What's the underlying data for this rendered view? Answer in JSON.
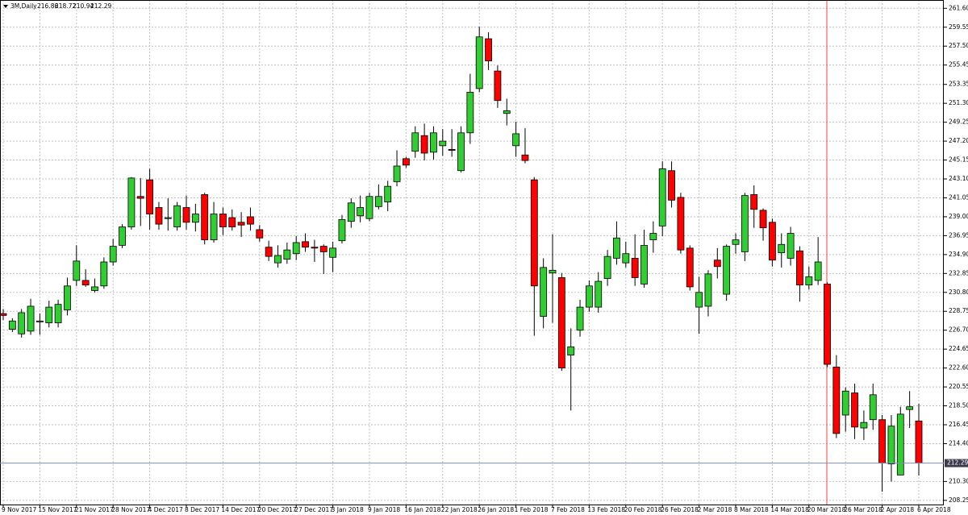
{
  "chart_data": {
    "type": "candlestick",
    "title": "3M,Daily",
    "categories": [
      "9 Nov 2017",
      null,
      null,
      null,
      "15 Nov 2017",
      null,
      null,
      null,
      "21 Nov 2017",
      null,
      null,
      null,
      "28 Nov 2017",
      null,
      null,
      null,
      "4 Dec 2017",
      null,
      null,
      null,
      "8 Dec 2017",
      null,
      null,
      null,
      "14 Dec 2017",
      null,
      null,
      null,
      "20 Dec 2017",
      null,
      null,
      null,
      "27 Dec 2017",
      null,
      null,
      null,
      "3 Jan 2018",
      null,
      null,
      null,
      "9 Jan 2018",
      null,
      null,
      null,
      "16 Jan 2018",
      null,
      null,
      null,
      "22 Jan 2018",
      null,
      null,
      null,
      "26 Jan 2018",
      null,
      null,
      null,
      "1 Feb 2018",
      null,
      null,
      null,
      "7 Feb 2018",
      null,
      null,
      null,
      "13 Feb 2018",
      null,
      null,
      null,
      "20 Feb 2018",
      null,
      null,
      null,
      "26 Feb 2018",
      null,
      null,
      null,
      "2 Mar 2018",
      null,
      null,
      null,
      "8 Mar 2018",
      null,
      null,
      null,
      "14 Mar 2018",
      null,
      null,
      null,
      "20 Mar 2018",
      null,
      null,
      null,
      "26 Mar 2018",
      null,
      null,
      null,
      "2 Apr 2018",
      null,
      null,
      null,
      "6 Apr 2018"
    ],
    "open": [
      228.5,
      226.8,
      226.3,
      226.6,
      227.6,
      227.5,
      227.5,
      228.9,
      232.1,
      232.1,
      231.0,
      231.5,
      234.1,
      235.9,
      237.9,
      241.2,
      243.0,
      240.0,
      238.8,
      237.9,
      240.0,
      238.4,
      241.4,
      236.5,
      239.3,
      238.9,
      238.4,
      239.0,
      237.6,
      235.7,
      234.0,
      234.4,
      235.0,
      236.3,
      235.7,
      235.8,
      234.6,
      236.4,
      238.5,
      239.1,
      238.8,
      240.1,
      240.6,
      242.8,
      245.3,
      246.1,
      247.8,
      246.0,
      246.7,
      246.3,
      244.0,
      248.1,
      252.9,
      258.3,
      254.8,
      250.2,
      246.7,
      245.7,
      243.0,
      228.2,
      232.9,
      232.4,
      224.0,
      226.7,
      229.2,
      229.2,
      232.3,
      234.5,
      234.0,
      234.5,
      231.7,
      236.5,
      238.0,
      244.0,
      241.1,
      235.6,
      229.2,
      229.3,
      234.3,
      230.6,
      236.0,
      235.2,
      241.4,
      239.7,
      238.4,
      235.1,
      234.5,
      235.3,
      231.6,
      232.1,
      231.7,
      222.7,
      217.5,
      219.9,
      216.1,
      217.0,
      217.0,
      212.2,
      211.0,
      218.1,
      216.86
    ],
    "high": [
      229.0,
      228.0,
      229.0,
      230.1,
      228.5,
      229.9,
      230.0,
      232.4,
      235.9,
      233.3,
      232.3,
      234.6,
      236.6,
      238.2,
      243.3,
      243.2,
      244.2,
      240.6,
      241.0,
      240.6,
      241.3,
      240.4,
      241.6,
      240.6,
      240.0,
      239.8,
      239.5,
      240.0,
      238.1,
      236.4,
      235.9,
      236.2,
      236.9,
      237.2,
      236.5,
      236.0,
      236.3,
      239.2,
      241.0,
      241.3,
      241.6,
      242.5,
      242.9,
      246.2,
      245.5,
      248.8,
      249.1,
      248.8,
      248.5,
      248.5,
      248.8,
      254.5,
      259.6,
      259.0,
      255.4,
      251.8,
      249.3,
      248.6,
      243.3,
      234.5,
      237.1,
      232.9,
      226.9,
      230.0,
      232.1,
      233.0,
      235.4,
      238.5,
      236.3,
      237.1,
      237.6,
      238.5,
      245.0,
      245.0,
      241.6,
      235.9,
      232.5,
      233.2,
      235.6,
      236.0,
      237.2,
      241.6,
      242.4,
      239.9,
      238.8,
      237.2,
      237.9,
      235.8,
      233.6,
      236.8,
      231.9,
      224.0,
      220.5,
      220.9,
      218.0,
      220.9,
      217.5,
      217.5,
      218.4,
      220.1,
      218.72
    ],
    "low": [
      227.8,
      226.5,
      225.9,
      226.2,
      226.2,
      227.0,
      227.0,
      228.3,
      231.5,
      231.4,
      230.8,
      231.2,
      233.7,
      235.6,
      237.6,
      238.0,
      237.6,
      237.6,
      237.5,
      237.5,
      237.6,
      237.4,
      236.0,
      236.2,
      237.0,
      237.5,
      236.8,
      237.5,
      236.3,
      234.2,
      233.5,
      233.9,
      234.3,
      235.2,
      234.1,
      232.8,
      233.0,
      236.1,
      237.8,
      238.4,
      238.5,
      239.8,
      239.6,
      242.3,
      244.3,
      245.4,
      245.1,
      245.2,
      245.6,
      245.5,
      243.8,
      246.9,
      252.5,
      254.9,
      250.8,
      248.9,
      245.5,
      244.8,
      226.1,
      226.9,
      227.5,
      222.3,
      218.0,
      226.0,
      228.7,
      228.6,
      231.5,
      233.8,
      233.5,
      231.5,
      231.3,
      235.1,
      236.9,
      240.0,
      235.0,
      231.0,
      226.3,
      228.2,
      232.3,
      229.9,
      235.0,
      234.2,
      237.8,
      236.4,
      233.6,
      233.5,
      233.7,
      229.8,
      231.1,
      231.6,
      222.7,
      215.0,
      215.7,
      214.9,
      214.8,
      215.9,
      209.2,
      210.3,
      211.0,
      216.1,
      210.94
    ],
    "close": [
      228.3,
      227.7,
      228.6,
      229.3,
      227.7,
      229.2,
      229.5,
      231.5,
      234.2,
      231.6,
      231.4,
      234.1,
      235.8,
      237.9,
      243.2,
      241.0,
      239.3,
      238.2,
      238.9,
      240.2,
      238.4,
      239.3,
      236.5,
      239.3,
      237.9,
      237.9,
      238.1,
      238.2,
      236.7,
      234.7,
      234.8,
      235.4,
      236.2,
      235.7,
      235.6,
      235.2,
      235.6,
      238.7,
      240.5,
      240.0,
      241.2,
      241.2,
      242.3,
      244.5,
      244.6,
      248.1,
      245.9,
      248.1,
      247.2,
      246.2,
      248.1,
      252.5,
      258.5,
      255.9,
      251.6,
      250.5,
      248.0,
      245.1,
      231.5,
      233.5,
      233.2,
      222.6,
      224.9,
      229.2,
      231.5,
      232.0,
      234.7,
      236.7,
      235.0,
      232.4,
      235.9,
      237.2,
      244.2,
      240.8,
      235.4,
      231.4,
      230.8,
      232.8,
      233.6,
      235.8,
      236.5,
      241.3,
      239.8,
      237.8,
      234.3,
      236.0,
      237.2,
      231.6,
      232.5,
      234.1,
      223.0,
      215.5,
      220.1,
      216.2,
      216.7,
      219.7,
      212.3,
      216.3,
      217.6,
      218.4,
      212.29
    ],
    "up_color": "#32cd32",
    "down_color": "#ff0000",
    "ylim": [
      207.8,
      262.5
    ],
    "yticks": [
      {
        "value": 261.6,
        "label": "261.60"
      },
      259.55,
      {
        "value": 257.5,
        "label": "257.50"
      },
      255.45,
      253.35,
      {
        "value": 251.3,
        "label": "251.30"
      },
      249.25,
      {
        "value": 247.2,
        "label": "247.20"
      },
      245.15,
      {
        "value": 243.1,
        "label": "243.10"
      },
      241.05,
      {
        "value": 239,
        "label": "239.00"
      },
      236.95,
      {
        "value": 234.9,
        "label": "234.90"
      },
      232.85,
      {
        "value": 230.8,
        "label": "230.80"
      },
      228.75,
      {
        "value": 226.7,
        "label": "226.70"
      },
      224.65,
      {
        "value": 222.6,
        "label": "222.60"
      },
      220.55,
      {
        "value": 218.5,
        "label": "218.50"
      },
      216.45,
      {
        "value": 214.4,
        "label": "214.40"
      },
      {
        "value": 210.3,
        "label": "210.30"
      },
      208.25
    ],
    "grid": true
  }
}
